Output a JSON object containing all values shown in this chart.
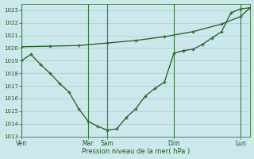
{
  "background_color": "#cce8ec",
  "grid_color": "#aacccc",
  "line_color": "#1a5c1a",
  "marker_color": "#2d6e2d",
  "xlabel": "Pression niveau de la mer( hPa )",
  "ylim": [
    1013,
    1023.5
  ],
  "yticks": [
    1013,
    1014,
    1015,
    1016,
    1017,
    1018,
    1019,
    1020,
    1021,
    1022,
    1023
  ],
  "xlim": [
    0,
    144
  ],
  "xtick_positions": [
    0,
    42,
    54,
    96,
    138
  ],
  "xtick_labels": [
    "Ven",
    "Mar",
    "Sam",
    "Dim",
    "Lun"
  ],
  "vlines": [
    0,
    42,
    54,
    96,
    138
  ],
  "line1_x": [
    0,
    18,
    36,
    54,
    72,
    90,
    108,
    126,
    138,
    144
  ],
  "line1_y": [
    1020.1,
    1020.15,
    1020.2,
    1020.4,
    1020.6,
    1020.9,
    1021.3,
    1021.9,
    1022.5,
    1023.2
  ],
  "line2_x": [
    0,
    6,
    12,
    18,
    24,
    30,
    36,
    42,
    48,
    54,
    60,
    66,
    72,
    78,
    84,
    90,
    96,
    102,
    108,
    114,
    120,
    126,
    132,
    138,
    144
  ],
  "line2_y": [
    1019.0,
    1019.5,
    1018.7,
    1018.0,
    1017.2,
    1016.5,
    1015.2,
    1014.2,
    1013.8,
    1013.5,
    1013.6,
    1014.5,
    1015.2,
    1016.2,
    1016.8,
    1017.3,
    1019.6,
    1019.8,
    1019.9,
    1020.3,
    1020.8,
    1021.3,
    1022.8,
    1023.1,
    1023.2
  ]
}
